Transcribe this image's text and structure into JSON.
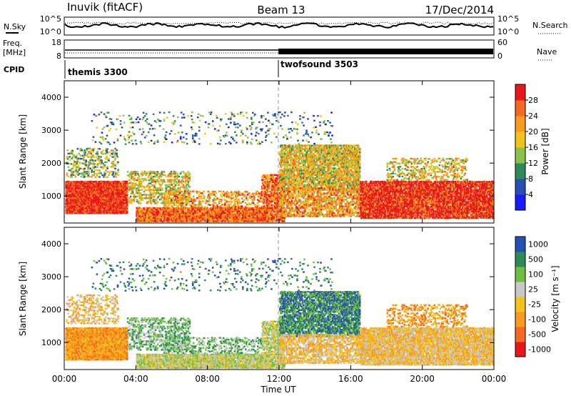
{
  "header": {
    "title": "Inuvik (fitACF)",
    "beam": "Beam 13",
    "date": "17/Dec/2014"
  },
  "status_panels": {
    "nsky_label": "N.Sky",
    "nsearch_label": "N.Search",
    "noise_ticks": [
      "10^5",
      "10^0"
    ],
    "freq_label_line1": "Freq.",
    "freq_label_line2": "[MHz]",
    "freq_ticks": [
      "18",
      "8"
    ],
    "nave_label": "Nave",
    "nave_ticks": [
      "60",
      "0"
    ],
    "cpid_label": "CPID",
    "cpid_entries": [
      {
        "name": "themis 3300",
        "start_hour": 0
      },
      {
        "name": "twofsound 3503",
        "start_hour": 12
      }
    ]
  },
  "colors": {
    "power_scale": [
      "#1a1aff",
      "#2a4fb4",
      "#2e8b57",
      "#8bc34a",
      "#f3c21b",
      "#f79a1e",
      "#f46a1f",
      "#e8181a"
    ],
    "velocity_scale": [
      "#e8181a",
      "#f46a1f",
      "#f79a1e",
      "#f3c21b",
      "#c8c8c8",
      "#6fc042",
      "#2e8b57",
      "#2a4fb4"
    ]
  },
  "chart_data": [
    {
      "type": "heatmap",
      "panel": "power",
      "ylabel": "Slant Range [km]",
      "yticks": [
        "1000",
        "2000",
        "3000",
        "4000"
      ],
      "ylim_km": [
        180,
        4500
      ],
      "xlim_hours": [
        0,
        24
      ],
      "colorbar_label": "Power [dB]",
      "colorbar_ticks": [
        "4",
        "8",
        "12",
        "16",
        "20",
        "24",
        "28"
      ],
      "colorbar_range_db": [
        0,
        32
      ]
    },
    {
      "type": "heatmap",
      "panel": "velocity",
      "ylabel": "Slant Range [km]",
      "yticks": [
        "1000",
        "2000",
        "3000",
        "4000"
      ],
      "ylim_km": [
        180,
        4500
      ],
      "xlim_hours": [
        0,
        24
      ],
      "colorbar_label": "Velocity [m s⁻¹]",
      "colorbar_ticks": [
        "-1000",
        "-500",
        "-100",
        "-25",
        "25",
        "100",
        "500",
        "1000"
      ]
    }
  ],
  "xaxis": {
    "label": "Time UT",
    "ticks": [
      "00:00",
      "04:00",
      "08:00",
      "12:00",
      "16:00",
      "20:00",
      "00:00"
    ]
  }
}
